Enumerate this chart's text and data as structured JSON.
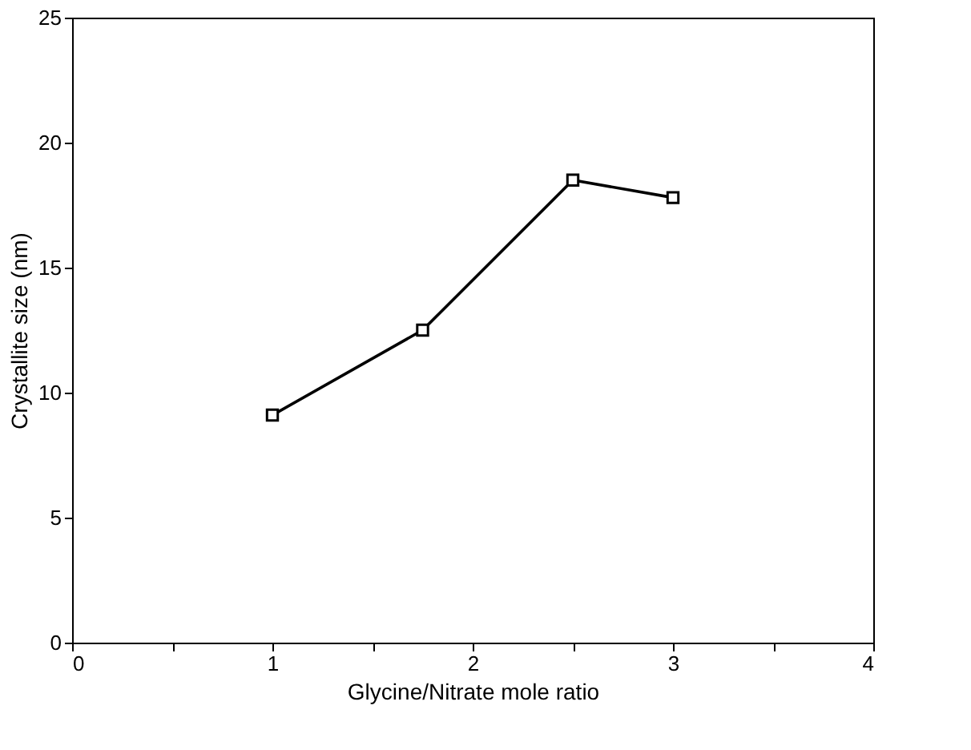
{
  "chart_data": {
    "type": "line",
    "xlabel": "Glycine/Nitrate mole ratio",
    "ylabel": "Crystallite size (nm)",
    "x": [
      1,
      1.75,
      2.5,
      3
    ],
    "series": [
      {
        "color": "#000000",
        "values": [
          9.1,
          12.5,
          18.5,
          17.8
        ]
      }
    ],
    "xlim": [
      0,
      4
    ],
    "ylim": [
      0,
      25
    ],
    "xticks": [
      0,
      {
        "value": 0.5,
        "label": null
      },
      1,
      {
        "value": 1.5,
        "label": null
      },
      2,
      {
        "value": 2.5,
        "label": null
      },
      3,
      {
        "value": 3.5,
        "label": null
      },
      4
    ],
    "yticks": [
      0,
      5,
      10,
      15,
      20,
      25
    ],
    "marker": "square",
    "line_style": "solid",
    "grid": false
  }
}
